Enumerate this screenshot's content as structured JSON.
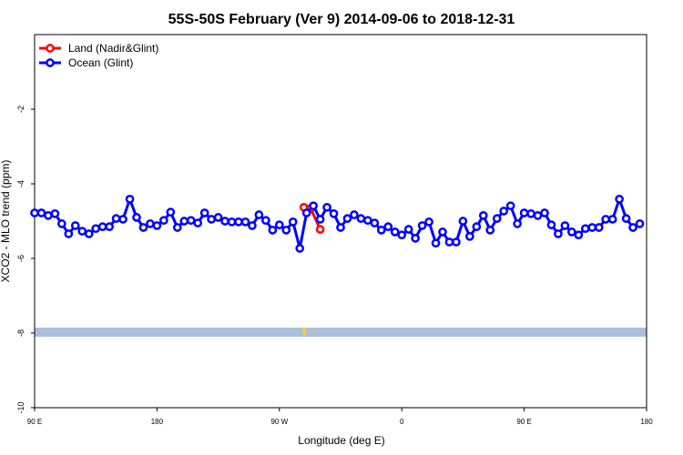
{
  "chart_data": {
    "type": "line",
    "title": "55S-50S February (Ver 9)   2014-09-06 to 2018-12-31",
    "x_label": "Longitude (deg E)",
    "y_label": "XCO2 - MLO trend (ppm)",
    "xlim": [
      90,
      540
    ],
    "ylim": [
      -10,
      0
    ],
    "xticks": [
      {
        "value": 90,
        "label": "90 E"
      },
      180,
      {
        "value": 270,
        "label": "90 W"
      },
      {
        "value": 360,
        "label": "0"
      },
      {
        "value": 450,
        "label": "90 E"
      },
      {
        "value": 540,
        "label": "180"
      }
    ],
    "yticks": [
      -10,
      -8,
      -6,
      -4,
      -2
    ],
    "legend": "top-left",
    "series": [
      {
        "name": "Land (Nadir&Glint)",
        "color": "#ff0000",
        "x": [
          288,
          293,
          300
        ],
        "values": [
          -4.63,
          -4.66,
          -5.22
        ]
      },
      {
        "name": "Ocean (Glint)",
        "color": "#0000ff",
        "x": [
          90,
          95,
          100,
          105,
          110,
          115,
          120,
          125,
          130,
          135,
          140,
          145,
          150,
          155,
          160,
          165,
          170,
          175,
          180,
          185,
          190,
          195,
          200,
          205,
          210,
          215,
          220,
          225,
          230,
          235,
          240,
          245,
          250,
          255,
          260,
          265,
          270,
          275,
          280,
          285,
          290,
          295,
          300,
          305,
          310,
          315,
          320,
          325,
          330,
          335,
          340,
          345,
          350,
          355,
          360,
          365,
          370,
          375,
          380,
          385,
          390,
          395,
          400,
          405,
          410,
          415,
          420,
          425,
          430,
          435,
          440,
          445,
          450,
          455,
          460,
          465,
          470,
          475,
          480,
          485,
          490,
          495,
          500,
          505,
          510,
          515,
          520,
          525,
          530,
          535
        ],
        "values": [
          -4.78,
          -4.78,
          -4.85,
          -4.8,
          -5.07,
          -5.34,
          -5.12,
          -5.27,
          -5.34,
          -5.2,
          -5.15,
          -5.15,
          -4.93,
          -4.95,
          -4.41,
          -4.9,
          -5.17,
          -5.07,
          -5.12,
          -4.98,
          -4.76,
          -5.17,
          -5.0,
          -4.98,
          -5.05,
          -4.78,
          -4.95,
          -4.9,
          -5.0,
          -5.02,
          -5.02,
          -5.02,
          -5.12,
          -4.83,
          -4.98,
          -5.24,
          -5.1,
          -5.24,
          -5.02,
          -5.73,
          -4.78,
          -4.59,
          -4.95,
          -4.63,
          -4.8,
          -5.17,
          -4.93,
          -4.83,
          -4.93,
          -4.98,
          -5.05,
          -5.24,
          -5.15,
          -5.29,
          -5.37,
          -5.22,
          -5.46,
          -5.12,
          -5.02,
          -5.59,
          -5.29,
          -5.56,
          -5.56,
          -5.0,
          -5.41,
          -5.15,
          -4.85,
          -5.24,
          -4.93,
          -4.73,
          -4.59,
          -5.07,
          -4.78,
          -4.8,
          -4.85,
          -4.78,
          -5.1,
          -5.34,
          -5.12,
          -5.29,
          -5.37,
          -5.2,
          -5.17,
          -5.17,
          -4.95,
          -4.95,
          -4.41,
          -4.93,
          -5.17,
          -5.07
        ]
      }
    ]
  }
}
